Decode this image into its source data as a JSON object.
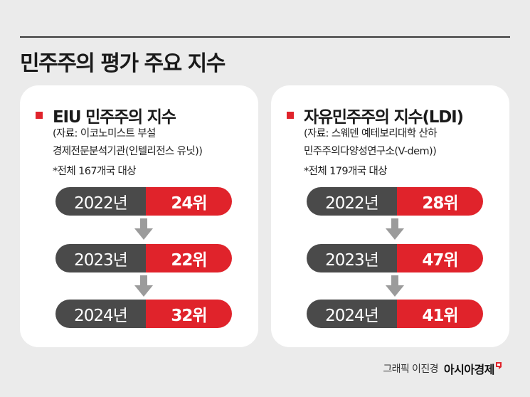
{
  "title": "민주주의 평가 주요 지수",
  "colors": {
    "accent": "#e0232b",
    "dark_pill": "#4a4a4a",
    "card": "#ffffff",
    "background": "#ebebeb"
  },
  "cards": [
    {
      "title": "EIU 민주주의 지수",
      "source_line1": "(자료: 이코노미스트 부설",
      "source_line2": "경제전문분석기관(인텔리전스 유닛))",
      "note": "*전체 167개국 대상",
      "rows": [
        {
          "year": "2022년",
          "rank": "24위"
        },
        {
          "year": "2023년",
          "rank": "22위"
        },
        {
          "year": "2024년",
          "rank": "32위"
        }
      ]
    },
    {
      "title": "자유민주주의 지수(LDI)",
      "source_line1": "(자료: 스웨덴 예테보리대학 산하",
      "source_line2": "민주주의다양성연구소(V-dem))",
      "note": "*전체 179개국 대상",
      "rows": [
        {
          "year": "2022년",
          "rank": "28위"
        },
        {
          "year": "2023년",
          "rank": "47위"
        },
        {
          "year": "2024년",
          "rank": "41위"
        }
      ]
    }
  ],
  "credit": {
    "author": "그래픽 이진경",
    "brand": "아시아경제"
  },
  "icons": {
    "arrow": "down-arrow-icon",
    "bullet": "square-bullet"
  }
}
